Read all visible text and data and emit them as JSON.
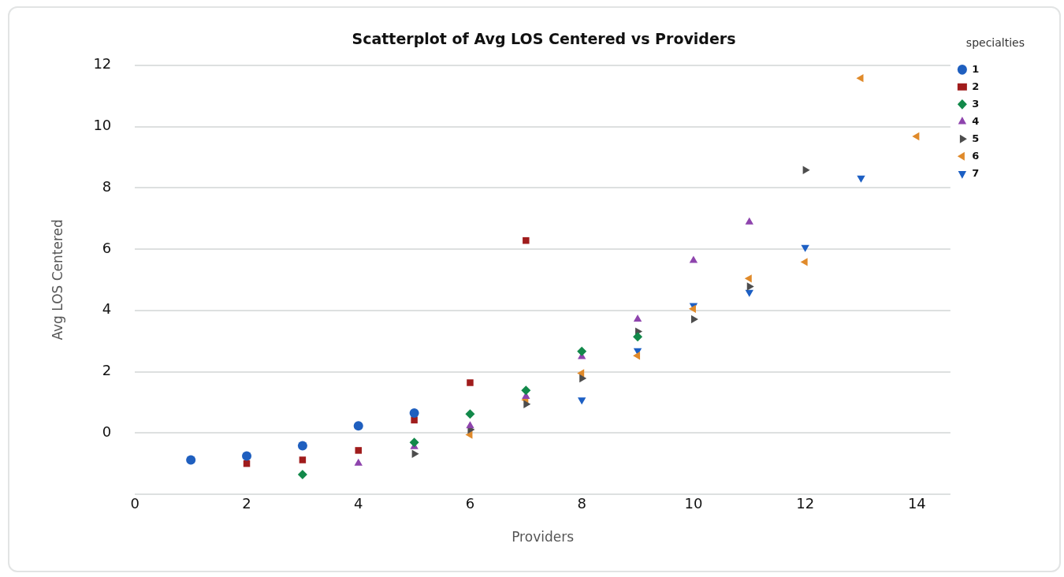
{
  "chart_data": {
    "type": "scatter",
    "title": "Scatterplot of Avg LOS Centered vs Providers",
    "xlabel": "Providers",
    "ylabel": "Avg LOS Centered",
    "legend_title": "specialties",
    "series": [
      {
        "name": "1",
        "color": "#1f5fbf",
        "marker": "circle",
        "x": [
          1,
          2,
          3,
          4,
          5
        ],
        "values": [
          -0.88,
          -0.75,
          -0.42,
          0.23,
          0.65
        ]
      },
      {
        "name": "2",
        "color": "#a01c1c",
        "marker": "square",
        "x": [
          2,
          3,
          4,
          5,
          6,
          7
        ],
        "values": [
          -1.0,
          -0.88,
          -0.57,
          0.42,
          1.64,
          6.28
        ]
      },
      {
        "name": "3",
        "color": "#12894a",
        "marker": "diamond",
        "x": [
          3,
          5,
          6,
          7,
          8,
          9
        ],
        "values": [
          -1.36,
          -0.31,
          0.62,
          1.39,
          2.66,
          3.14
        ]
      },
      {
        "name": "4",
        "color": "#8e44ad",
        "marker": "triangle-up",
        "x": [
          4,
          5,
          6,
          7,
          8,
          9,
          10,
          11
        ],
        "values": [
          -0.99,
          -0.45,
          0.23,
          1.19,
          2.49,
          3.71,
          5.63,
          6.88
        ]
      },
      {
        "name": "5",
        "color": "#4d4d4d",
        "marker": "triangle-right",
        "x": [
          5,
          6,
          7,
          8,
          9,
          10,
          11,
          12
        ],
        "values": [
          -0.68,
          0.11,
          0.94,
          1.78,
          3.31,
          3.71,
          4.78,
          8.58
        ]
      },
      {
        "name": "6",
        "color": "#e08a2a",
        "marker": "triangle-left",
        "x": [
          6,
          7,
          8,
          9,
          10,
          11,
          12,
          13,
          14
        ],
        "values": [
          -0.06,
          1.08,
          1.95,
          2.52,
          4.05,
          5.04,
          5.58,
          11.58,
          9.68
        ]
      },
      {
        "name": "7",
        "color": "#1c5fc4",
        "marker": "triangle-down",
        "x": [
          8,
          9,
          10,
          11,
          12,
          13
        ],
        "values": [
          1.08,
          2.69,
          4.16,
          4.59,
          6.06,
          8.32
        ]
      }
    ],
    "xlim": [
      0,
      14.6
    ],
    "xticks": [
      0,
      2,
      4,
      6,
      8,
      10,
      12,
      14
    ],
    "ylim": [
      -2,
      12
    ],
    "yticks": [
      {
        "value": -2,
        "label": null
      },
      0,
      2,
      4,
      6,
      8,
      10,
      12
    ],
    "grid": "y",
    "legend": "top right"
  }
}
